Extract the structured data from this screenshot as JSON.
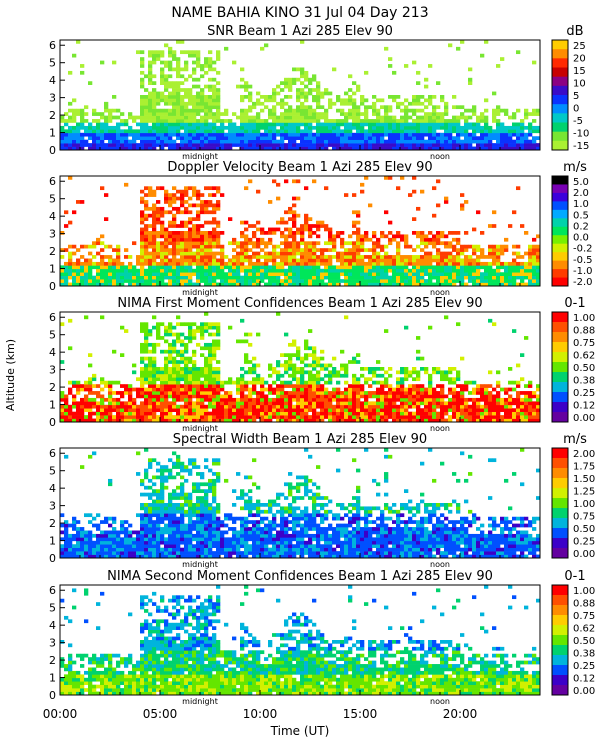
{
  "title": "NAME BAHIA KINO  31 Jul 04 Day 213",
  "y_axis_label": "Altitude (km)",
  "x_axis_label": "Time (UT)",
  "x_ticks": [
    "00:00",
    "05:00",
    "10:00",
    "15:00",
    "20:00"
  ],
  "x_tick_hours": [
    0,
    5,
    10,
    15,
    20
  ],
  "x_range_hours": [
    0,
    24
  ],
  "y_range_km": [
    0,
    6.3
  ],
  "y_ticks": [
    "0",
    "1",
    "2",
    "3",
    "4",
    "5",
    "6"
  ],
  "markers": [
    {
      "label": "midnight",
      "hour": 7.0
    },
    {
      "label": "noon",
      "hour": 19.0
    }
  ],
  "chart_data": [
    {
      "type": "heatmap",
      "title": "SNR Beam 1 Azi 285 Elev 90",
      "unit": "dB",
      "colorbar_ticks": [
        "25",
        "20",
        "15",
        "10",
        "5",
        "0",
        "-5",
        "-10",
        "-15"
      ],
      "colorbar_colors": [
        "#ffcc00",
        "#ff8c00",
        "#ff2a00",
        "#c80000",
        "#8b0082",
        "#3a0bc8",
        "#0a32ff",
        "#008cff",
        "#00c8c8",
        "#00d26e",
        "#78e632",
        "#aaf032"
      ],
      "ylim": [
        0,
        6.3
      ],
      "xlim": [
        0,
        24
      ]
    },
    {
      "type": "heatmap",
      "title": "Doppler Velocity Beam 1 Azi 285 Elev 90",
      "unit": "m/s",
      "colorbar_ticks": [
        "5.0",
        "2.0",
        "1.0",
        "0.5",
        "0.2",
        "0.0",
        "-0.2",
        "-0.5",
        "-1.0",
        "-2.0"
      ],
      "colorbar_colors": [
        "#000000",
        "#7800b4",
        "#3c00dc",
        "#0050ff",
        "#00aaff",
        "#00d2aa",
        "#00e65a",
        "#78f000",
        "#d2f000",
        "#ffcc00",
        "#ff8c00",
        "#ff3c00",
        "#ff0000"
      ],
      "ylim": [
        0,
        6.3
      ],
      "xlim": [
        0,
        24
      ]
    },
    {
      "type": "heatmap",
      "title": "NIMA First Moment Confidences Beam 1 Azi 285 Elev 90",
      "unit": "0-1",
      "colorbar_ticks": [
        "1.00",
        "0.88",
        "0.75",
        "0.62",
        "0.50",
        "0.38",
        "0.25",
        "0.12",
        "0.00"
      ],
      "colorbar_colors": [
        "#ff0000",
        "#ff5000",
        "#ff8c00",
        "#ffcc00",
        "#d2f000",
        "#64e600",
        "#00d26e",
        "#00b4dc",
        "#0050ff",
        "#3c00c8",
        "#6400a0"
      ],
      "ylim": [
        0,
        6.3
      ],
      "xlim": [
        0,
        24
      ]
    },
    {
      "type": "heatmap",
      "title": "Spectral Width Beam 1 Azi 285 Elev 90",
      "unit": "m/s",
      "colorbar_ticks": [
        "2.00",
        "1.75",
        "1.50",
        "1.25",
        "1.00",
        "0.75",
        "0.50",
        "0.25",
        "0.00"
      ],
      "colorbar_colors": [
        "#ff0000",
        "#ff5000",
        "#ff8c00",
        "#ffcc00",
        "#d2f000",
        "#64e600",
        "#00d26e",
        "#00b4dc",
        "#0050ff",
        "#3c00c8",
        "#6400a0"
      ],
      "ylim": [
        0,
        6.3
      ],
      "xlim": [
        0,
        24
      ]
    },
    {
      "type": "heatmap",
      "title": "NIMA Second Moment Confidences Beam 1 Azi 285 Elev 90",
      "unit": "0-1",
      "colorbar_ticks": [
        "1.00",
        "0.88",
        "0.75",
        "0.62",
        "0.50",
        "0.38",
        "0.25",
        "0.12",
        "0.00"
      ],
      "colorbar_colors": [
        "#ff0000",
        "#ff5000",
        "#ff8c00",
        "#ffcc00",
        "#d2f000",
        "#64e600",
        "#00d26e",
        "#00b4dc",
        "#0050ff",
        "#3c00c8",
        "#6400a0"
      ],
      "ylim": [
        0,
        6.3
      ],
      "xlim": [
        0,
        24
      ]
    }
  ]
}
